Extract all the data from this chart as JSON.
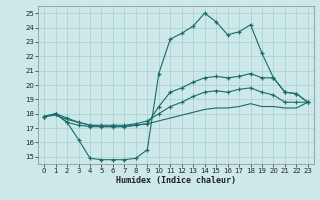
{
  "xlabel": "Humidex (Indice chaleur)",
  "background_color": "#cce8e8",
  "grid_color": "#aacece",
  "line_color": "#1a6b6b",
  "xlim": [
    -0.5,
    23.5
  ],
  "ylim": [
    14.5,
    25.5
  ],
  "xticks": [
    0,
    1,
    2,
    3,
    4,
    5,
    6,
    7,
    8,
    9,
    10,
    11,
    12,
    13,
    14,
    15,
    16,
    17,
    18,
    19,
    20,
    21,
    22,
    23
  ],
  "yticks": [
    15,
    16,
    17,
    18,
    19,
    20,
    21,
    22,
    23,
    24,
    25
  ],
  "line1_x": [
    0,
    1,
    2,
    3,
    4,
    5,
    6,
    7,
    8,
    9,
    10,
    11,
    12,
    13,
    14,
    15,
    16,
    17,
    18,
    19,
    20,
    21,
    22,
    23
  ],
  "line1_y": [
    17.8,
    18.0,
    17.4,
    16.2,
    14.9,
    14.8,
    14.8,
    14.8,
    14.9,
    15.5,
    20.8,
    23.2,
    23.6,
    24.1,
    25.0,
    24.4,
    23.5,
    23.7,
    24.2,
    22.2,
    20.5,
    19.5,
    19.4,
    18.8
  ],
  "line2_x": [
    0,
    1,
    2,
    3,
    4,
    5,
    6,
    7,
    8,
    9,
    10,
    11,
    12,
    13,
    14,
    15,
    16,
    17,
    18,
    19,
    20,
    21,
    22,
    23
  ],
  "line2_y": [
    17.8,
    18.0,
    17.4,
    17.2,
    17.1,
    17.1,
    17.1,
    17.1,
    17.2,
    17.3,
    18.5,
    19.5,
    19.8,
    20.2,
    20.5,
    20.6,
    20.5,
    20.6,
    20.8,
    20.5,
    20.5,
    19.5,
    19.4,
    18.8
  ],
  "line3_x": [
    0,
    1,
    2,
    3,
    4,
    5,
    6,
    7,
    8,
    9,
    10,
    11,
    12,
    13,
    14,
    15,
    16,
    17,
    18,
    19,
    20,
    21,
    22,
    23
  ],
  "line3_y": [
    17.8,
    18.0,
    17.7,
    17.4,
    17.2,
    17.2,
    17.2,
    17.2,
    17.3,
    17.5,
    18.0,
    18.5,
    18.8,
    19.2,
    19.5,
    19.6,
    19.5,
    19.7,
    19.8,
    19.5,
    19.3,
    18.8,
    18.8,
    18.8
  ],
  "line4_x": [
    0,
    1,
    2,
    3,
    4,
    5,
    6,
    7,
    8,
    9,
    10,
    11,
    12,
    13,
    14,
    15,
    16,
    17,
    18,
    19,
    20,
    21,
    22,
    23
  ],
  "line4_y": [
    17.8,
    17.9,
    17.6,
    17.4,
    17.2,
    17.1,
    17.1,
    17.1,
    17.2,
    17.3,
    17.5,
    17.7,
    17.9,
    18.1,
    18.3,
    18.4,
    18.4,
    18.5,
    18.7,
    18.5,
    18.5,
    18.4,
    18.4,
    18.8
  ]
}
